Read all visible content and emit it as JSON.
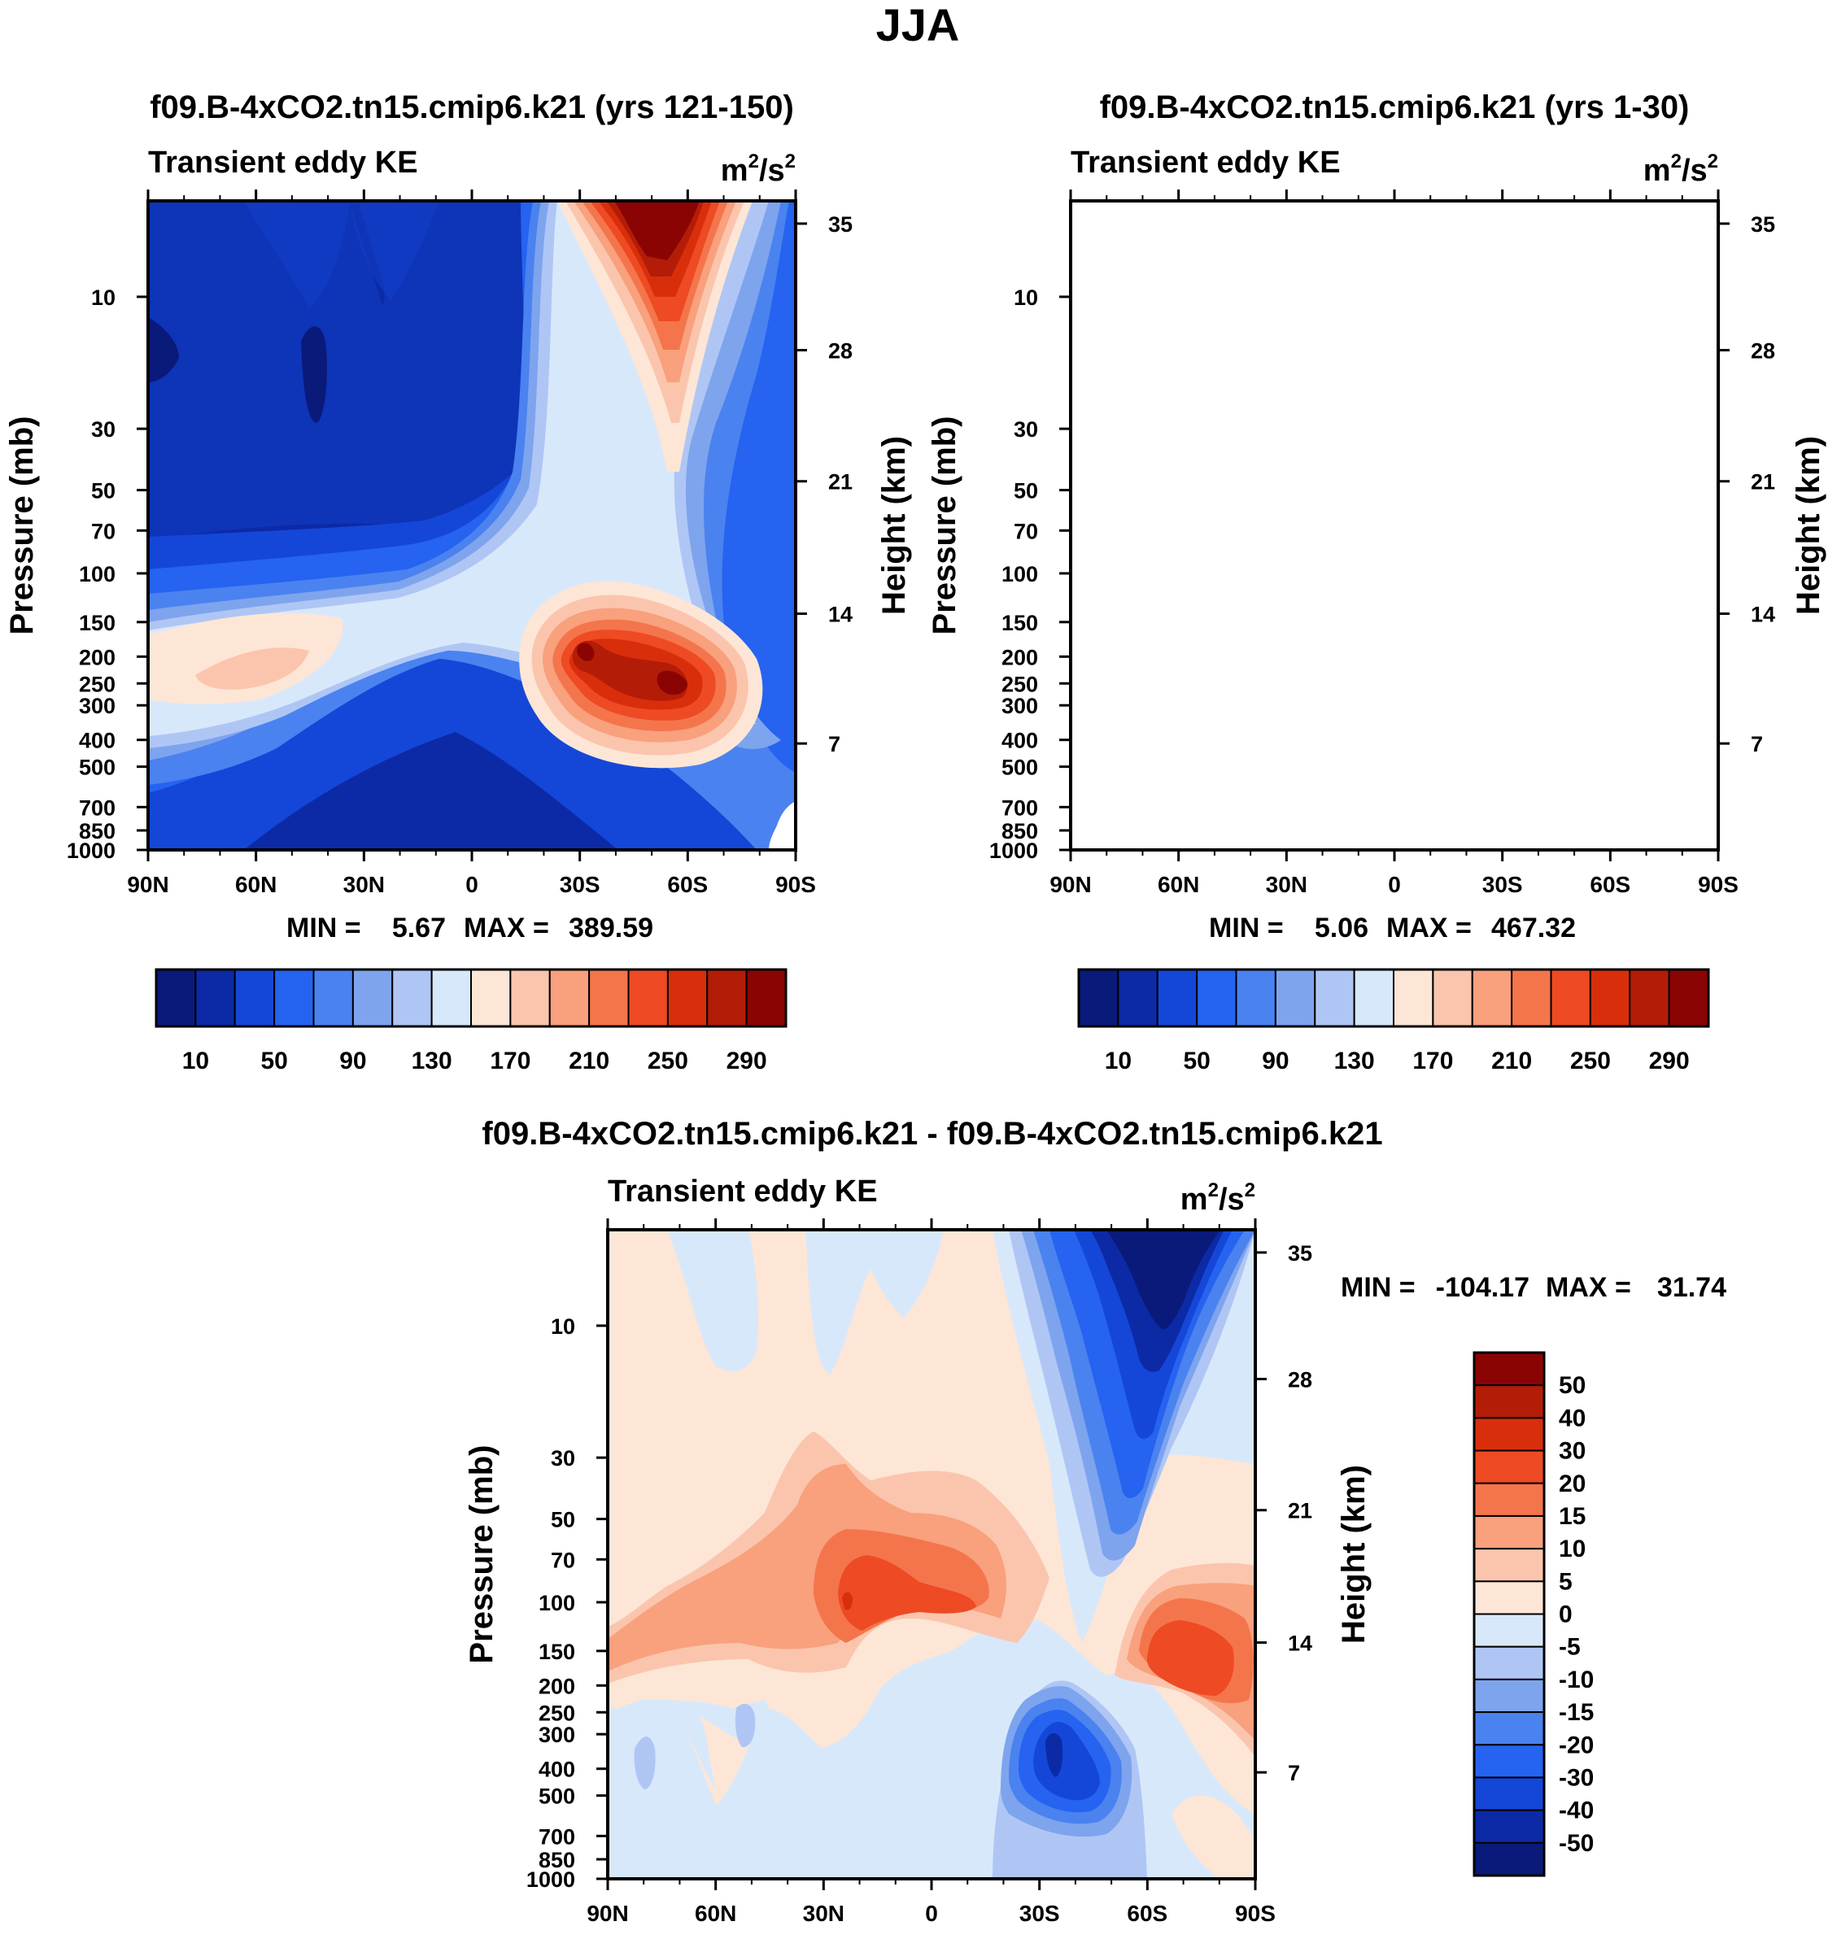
{
  "figure": {
    "title": "JJA"
  },
  "common": {
    "label_left": "Transient eddy KE",
    "units_base": "m",
    "units_mid": "/s",
    "units_sup": "2",
    "ylabel_left": "Pressure (mb)",
    "ylabel_right": "Height (km)",
    "min_label": "MIN =",
    "max_label": "MAX ="
  },
  "chart_data": [
    {
      "id": "p1",
      "type": "contour",
      "title": "f09.B-4xCO2.tn15.cmip6.k21 (yrs 121-150)",
      "subtitle": "Transient eddy KE",
      "units": "m2/s2",
      "x_ticks": [
        "90N",
        "60N",
        "30N",
        "0",
        "30S",
        "60S",
        "90S"
      ],
      "y_ticks": [
        "10",
        "30",
        "50",
        "70",
        "100",
        "150",
        "200",
        "250",
        "300",
        "400",
        "500",
        "700",
        "850",
        "1000"
      ],
      "y2_ticks": [
        "35",
        "28",
        "21",
        "14",
        "7"
      ],
      "ylabel": "Pressure (mb)",
      "y2label": "Height (km)",
      "min_value": "5.67",
      "max_value": "389.59",
      "colorbar_labels": [
        "10",
        "50",
        "90",
        "130",
        "170",
        "210",
        "250",
        "290"
      ],
      "colors": [
        "#0a1a7a",
        "#0c2aa6",
        "#1447d8",
        "#2563f0",
        "#4a82f0",
        "#7ea4ee",
        "#afc6f5",
        "#d8e8fb",
        "#fde6d6",
        "#fbc5ad",
        "#f9a07d",
        "#f4754c",
        "#ee4a24",
        "#d92e0c",
        "#b31d07",
        "#8b0404"
      ]
    },
    {
      "id": "p2",
      "type": "contour",
      "title": "f09.B-4xCO2.tn15.cmip6.k21 (yrs 1-30)",
      "subtitle": "Transient eddy KE",
      "units": "m2/s2",
      "x_ticks": [
        "90N",
        "60N",
        "30N",
        "0",
        "30S",
        "60S",
        "90S"
      ],
      "y_ticks": [
        "10",
        "30",
        "50",
        "70",
        "100",
        "150",
        "200",
        "250",
        "300",
        "400",
        "500",
        "700",
        "850",
        "1000"
      ],
      "y2_ticks": [
        "35",
        "28",
        "21",
        "14",
        "7"
      ],
      "ylabel": "Pressure (mb)",
      "y2label": "Height (km)",
      "min_value": "5.06",
      "max_value": "467.32",
      "colorbar_labels": [
        "10",
        "50",
        "90",
        "130",
        "170",
        "210",
        "250",
        "290"
      ],
      "colors": [
        "#0a1a7a",
        "#0c2aa6",
        "#1447d8",
        "#2563f0",
        "#4a82f0",
        "#7ea4ee",
        "#afc6f5",
        "#d8e8fb",
        "#fde6d6",
        "#fbc5ad",
        "#f9a07d",
        "#f4754c",
        "#ee4a24",
        "#d92e0c",
        "#b31d07",
        "#8b0404"
      ]
    },
    {
      "id": "p3",
      "type": "contour",
      "title": "f09.B-4xCO2.tn15.cmip6.k21 - f09.B-4xCO2.tn15.cmip6.k21",
      "subtitle": "Transient eddy KE",
      "units": "m2/s2",
      "x_ticks": [
        "90N",
        "60N",
        "30N",
        "0",
        "30S",
        "60S",
        "90S"
      ],
      "y_ticks": [
        "10",
        "30",
        "50",
        "70",
        "100",
        "150",
        "200",
        "250",
        "300",
        "400",
        "500",
        "700",
        "850",
        "1000"
      ],
      "y2_ticks": [
        "35",
        "28",
        "21",
        "14",
        "7"
      ],
      "ylabel": "Pressure (mb)",
      "y2label": "Height (km)",
      "min_value": "-104.17",
      "max_value": "31.74",
      "colorbar_labels": [
        "50",
        "40",
        "30",
        "20",
        "15",
        "10",
        "5",
        "0",
        "-5",
        "-10",
        "-15",
        "-20",
        "-30",
        "-40",
        "-50"
      ],
      "colors": [
        "#8b0404",
        "#b31d07",
        "#d92e0c",
        "#ee4a24",
        "#f4754c",
        "#f9a07d",
        "#fbc5ad",
        "#fde6d6",
        "#d8e8fb",
        "#afc6f5",
        "#7ea4ee",
        "#4a82f0",
        "#2563f0",
        "#1447d8",
        "#0c2aa6",
        "#0a1a7a"
      ]
    }
  ]
}
